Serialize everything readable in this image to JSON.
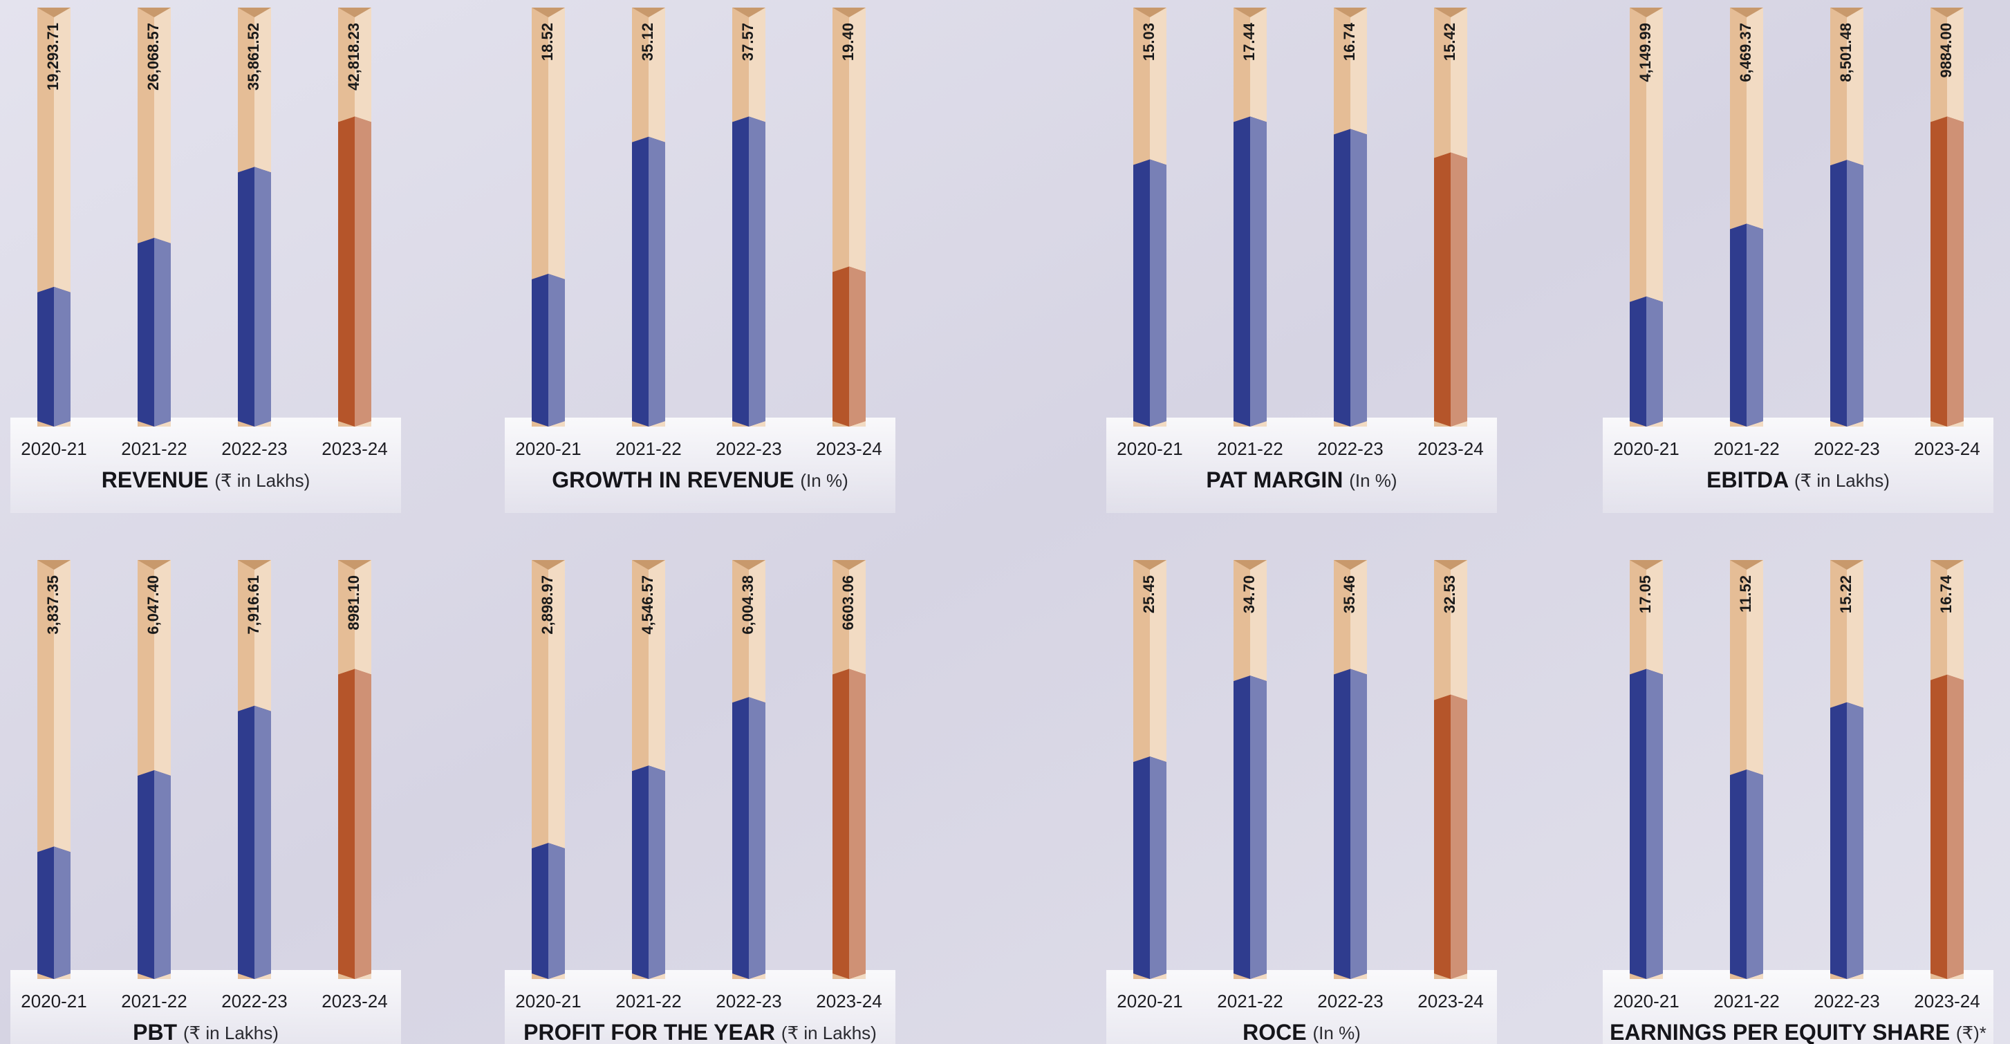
{
  "chart_data": [
    {
      "type": "bar",
      "title": "REVENUE",
      "subtitle": "(₹ in Lakhs)",
      "categories": [
        "2020-21",
        "2021-22",
        "2022-23",
        "2023-24"
      ],
      "values": [
        19293.71,
        26068.57,
        35861.52,
        42818.23
      ],
      "value_labels": [
        "19,293.71",
        "26,068.57",
        "35,861.52",
        "42,818.23"
      ],
      "colors": [
        "#2f3c8e",
        "#2f3c8e",
        "#2f3c8e",
        "#b5552a"
      ]
    },
    {
      "type": "bar",
      "title": "GROWTH IN REVENUE",
      "subtitle": "(In %)",
      "categories": [
        "2020-21",
        "2021-22",
        "2022-23",
        "2023-24"
      ],
      "values": [
        18.52,
        35.12,
        37.57,
        19.4
      ],
      "value_labels": [
        "18.52",
        "35.12",
        "37.57",
        "19.40"
      ],
      "colors": [
        "#2f3c8e",
        "#2f3c8e",
        "#2f3c8e",
        "#b5552a"
      ]
    },
    {
      "type": "bar",
      "title": "PAT MARGIN",
      "subtitle": "(In %)",
      "categories": [
        "2020-21",
        "2021-22",
        "2022-23",
        "2023-24"
      ],
      "values": [
        15.03,
        17.44,
        16.74,
        15.42
      ],
      "value_labels": [
        "15.03",
        "17.44",
        "16.74",
        "15.42"
      ],
      "colors": [
        "#2f3c8e",
        "#2f3c8e",
        "#2f3c8e",
        "#b5552a"
      ]
    },
    {
      "type": "bar",
      "title": "EBITDA",
      "subtitle": "(₹ in Lakhs)",
      "categories": [
        "2020-21",
        "2021-22",
        "2022-23",
        "2023-24"
      ],
      "values": [
        4149.99,
        6469.37,
        8501.48,
        9884
      ],
      "value_labels": [
        "4,149.99",
        "6,469.37",
        "8,501.48",
        "9884.00"
      ],
      "colors": [
        "#2f3c8e",
        "#2f3c8e",
        "#2f3c8e",
        "#b5552a"
      ]
    },
    {
      "type": "bar",
      "title": "PBT",
      "subtitle": "(₹ in Lakhs)",
      "categories": [
        "2020-21",
        "2021-22",
        "2022-23",
        "2023-24"
      ],
      "values": [
        3837.35,
        6047.4,
        7916.61,
        8981.1
      ],
      "value_labels": [
        "3,837.35",
        "6,047.40",
        "7,916.61",
        "8981.10"
      ],
      "colors": [
        "#2f3c8e",
        "#2f3c8e",
        "#2f3c8e",
        "#b5552a"
      ]
    },
    {
      "type": "bar",
      "title": "PROFIT FOR THE YEAR",
      "subtitle": "(₹ in Lakhs)",
      "categories": [
        "2020-21",
        "2021-22",
        "2022-23",
        "2023-24"
      ],
      "values": [
        2898.97,
        4546.57,
        6004.38,
        6603.06
      ],
      "value_labels": [
        "2,898.97",
        "4,546.57",
        "6,004.38",
        "6603.06"
      ],
      "colors": [
        "#2f3c8e",
        "#2f3c8e",
        "#2f3c8e",
        "#b5552a"
      ]
    },
    {
      "type": "bar",
      "title": "ROCE",
      "subtitle": "(In %)",
      "categories": [
        "2020-21",
        "2021-22",
        "2022-23",
        "2023-24"
      ],
      "values": [
        25.45,
        34.7,
        35.46,
        32.53
      ],
      "value_labels": [
        "25.45",
        "34.70",
        "35.46",
        "32.53"
      ],
      "colors": [
        "#2f3c8e",
        "#2f3c8e",
        "#2f3c8e",
        "#b5552a"
      ]
    },
    {
      "type": "bar",
      "title": "EARNINGS PER EQUITY SHARE",
      "subtitle": "(₹)*",
      "categories": [
        "2020-21",
        "2021-22",
        "2022-23",
        "2023-24"
      ],
      "values": [
        17.05,
        11.52,
        15.22,
        16.74
      ],
      "value_labels": [
        "17.05",
        "11.52",
        "15.22",
        "16.74"
      ],
      "colors": [
        "#2f3c8e",
        "#2f3c8e",
        "#2f3c8e",
        "#b5552a"
      ]
    }
  ]
}
